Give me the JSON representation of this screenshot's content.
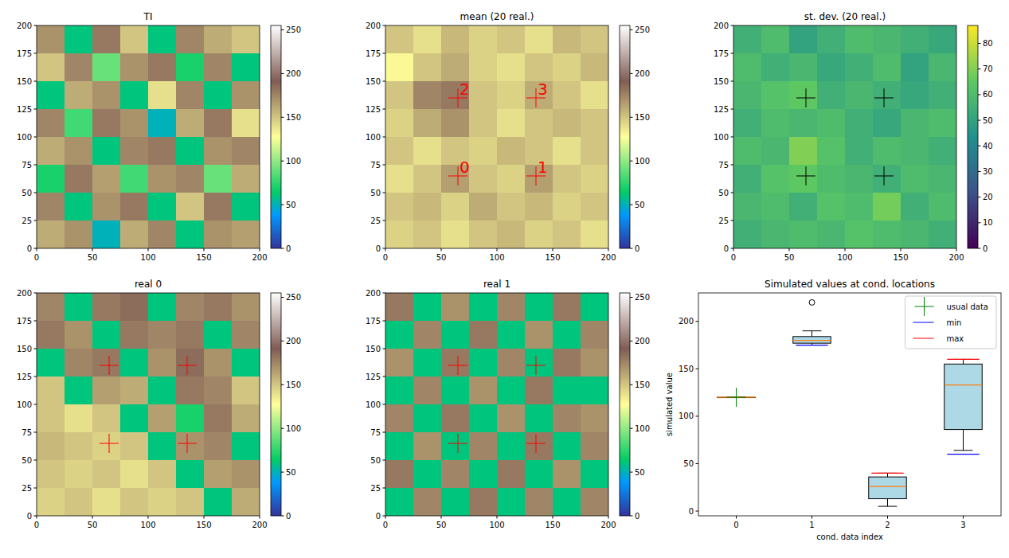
{
  "chart_data": [
    {
      "type": "heatmap",
      "title": "TI",
      "color": "terrain",
      "xlim": [
        0,
        200
      ],
      "ylim": [
        0,
        200
      ],
      "xticks": [
        0,
        50,
        100,
        150,
        200
      ],
      "yticks": [
        0,
        25,
        50,
        75,
        100,
        125,
        150,
        175,
        200
      ],
      "cells": [
        [
          170,
          60,
          180,
          150,
          60,
          175,
          160,
          150
        ],
        [
          150,
          175,
          90,
          170,
          180,
          70,
          175,
          60
        ],
        [
          60,
          160,
          170,
          60,
          140,
          175,
          60,
          170
        ],
        [
          175,
          80,
          180,
          170,
          50,
          160,
          180,
          140
        ],
        [
          160,
          170,
          60,
          175,
          180,
          60,
          170,
          175
        ],
        [
          70,
          180,
          165,
          80,
          170,
          175,
          90,
          160
        ],
        [
          175,
          60,
          170,
          180,
          60,
          150,
          180,
          60
        ],
        [
          160,
          170,
          50,
          160,
          175,
          60,
          170,
          165
        ]
      ],
      "clim": [
        0,
        255
      ],
      "cticks": [
        0,
        50,
        100,
        150,
        200,
        250
      ]
    },
    {
      "type": "heatmap",
      "title": "mean (20 real.)",
      "color": "terrain",
      "xlim": [
        0,
        200
      ],
      "ylim": [
        0,
        200
      ],
      "xticks": [
        0,
        50,
        100,
        150,
        200
      ],
      "yticks": [
        0,
        25,
        50,
        75,
        100,
        125,
        150,
        175,
        200
      ],
      "cells": [
        [
          150,
          140,
          155,
          145,
          150,
          140,
          155,
          150
        ],
        [
          130,
          150,
          160,
          145,
          140,
          150,
          145,
          155
        ],
        [
          150,
          175,
          180,
          150,
          145,
          160,
          150,
          140
        ],
        [
          145,
          160,
          170,
          150,
          140,
          150,
          155,
          150
        ],
        [
          150,
          140,
          150,
          145,
          155,
          150,
          140,
          150
        ],
        [
          140,
          150,
          165,
          150,
          145,
          165,
          150,
          145
        ],
        [
          150,
          155,
          145,
          160,
          150,
          155,
          145,
          150
        ],
        [
          145,
          150,
          140,
          150,
          155,
          145,
          150,
          140
        ]
      ],
      "clim": [
        0,
        255
      ],
      "cticks": [
        0,
        50,
        100,
        150,
        200,
        250
      ],
      "points": {
        "x": [
          65,
          135,
          65,
          135
        ],
        "y": [
          65,
          65,
          135,
          135
        ],
        "color": "red",
        "labels": [
          "0",
          "1",
          "2",
          "3"
        ]
      }
    },
    {
      "type": "heatmap",
      "title": "st. dev. (20 real.)",
      "color": "viridis",
      "xlim": [
        0,
        200
      ],
      "ylim": [
        0,
        200
      ],
      "xticks": [
        0,
        50,
        100,
        150,
        200
      ],
      "yticks": [
        0,
        25,
        50,
        75,
        100,
        125,
        150,
        175,
        200
      ],
      "cells": [
        [
          55,
          60,
          50,
          55,
          60,
          58,
          55,
          52
        ],
        [
          60,
          55,
          58,
          52,
          55,
          60,
          50,
          58
        ],
        [
          58,
          62,
          65,
          55,
          58,
          55,
          52,
          55
        ],
        [
          55,
          60,
          58,
          60,
          55,
          52,
          58,
          60
        ],
        [
          60,
          58,
          70,
          62,
          55,
          60,
          58,
          55
        ],
        [
          55,
          62,
          65,
          60,
          58,
          55,
          60,
          58
        ],
        [
          58,
          60,
          55,
          62,
          60,
          68,
          55,
          60
        ],
        [
          55,
          58,
          60,
          58,
          62,
          60,
          58,
          55
        ]
      ],
      "clim": [
        0,
        87
      ],
      "cticks": [
        0,
        10,
        20,
        30,
        40,
        50,
        60,
        70,
        80
      ],
      "points": {
        "x": [
          65,
          135,
          65,
          135
        ],
        "y": [
          65,
          65,
          135,
          135
        ],
        "color": "black"
      }
    },
    {
      "type": "heatmap",
      "title": "real 0",
      "color": "terrain",
      "xlim": [
        0,
        200
      ],
      "ylim": [
        0,
        200
      ],
      "xticks": [
        0,
        50,
        100,
        150,
        200
      ],
      "yticks": [
        0,
        25,
        50,
        75,
        100,
        125,
        150,
        175,
        200
      ],
      "cells": [
        [
          175,
          60,
          180,
          185,
          60,
          175,
          180,
          170
        ],
        [
          180,
          170,
          60,
          180,
          175,
          180,
          60,
          175
        ],
        [
          60,
          175,
          180,
          60,
          170,
          185,
          170,
          60
        ],
        [
          150,
          60,
          165,
          160,
          60,
          180,
          175,
          150
        ],
        [
          150,
          140,
          150,
          60,
          165,
          70,
          180,
          160
        ],
        [
          155,
          150,
          145,
          150,
          60,
          170,
          175,
          60
        ],
        [
          150,
          145,
          150,
          140,
          150,
          60,
          165,
          170
        ],
        [
          145,
          150,
          140,
          150,
          145,
          150,
          60,
          160
        ]
      ],
      "clim": [
        0,
        255
      ],
      "cticks": [
        0,
        50,
        100,
        150,
        200,
        250
      ],
      "points": {
        "x": [
          65,
          135,
          65,
          135
        ],
        "y": [
          65,
          65,
          135,
          135
        ],
        "color": "red"
      }
    },
    {
      "type": "heatmap",
      "title": "real 1",
      "color": "terrain",
      "xlim": [
        0,
        200
      ],
      "ylim": [
        0,
        200
      ],
      "xticks": [
        0,
        50,
        100,
        150,
        200
      ],
      "yticks": [
        0,
        25,
        50,
        75,
        100,
        125,
        150,
        175,
        200
      ],
      "cells": [
        [
          180,
          60,
          170,
          60,
          175,
          60,
          180,
          60
        ],
        [
          60,
          175,
          60,
          180,
          60,
          170,
          60,
          175
        ],
        [
          170,
          60,
          180,
          60,
          175,
          60,
          180,
          170
        ],
        [
          60,
          175,
          60,
          170,
          60,
          180,
          60,
          60
        ],
        [
          175,
          60,
          180,
          60,
          170,
          60,
          175,
          170
        ],
        [
          60,
          170,
          60,
          175,
          60,
          180,
          60,
          175
        ],
        [
          180,
          60,
          175,
          60,
          180,
          60,
          170,
          60
        ],
        [
          60,
          175,
          60,
          180,
          60,
          175,
          60,
          175
        ]
      ],
      "clim": [
        0,
        255
      ],
      "cticks": [
        0,
        50,
        100,
        150,
        200,
        250
      ],
      "points": {
        "x": [
          65,
          135,
          65,
          135
        ],
        "y": [
          65,
          65,
          135,
          135
        ],
        "color": "red"
      }
    },
    {
      "type": "box",
      "title": "Simulated values at cond. locations",
      "x_label": "cond. data index",
      "y_label": "simulated value",
      "categories": [
        "0",
        "1",
        "2",
        "3"
      ],
      "xlim": [
        -0.5,
        3.5
      ],
      "ylim": [
        -5,
        230
      ],
      "yticks": [
        0,
        50,
        100,
        150,
        200
      ],
      "color": "lightblue",
      "legend": "upper right",
      "boxes": [
        {
          "whislo": 120,
          "q1": 120,
          "med": 120,
          "q3": 120,
          "whishi": 120,
          "fliers": []
        },
        {
          "whislo": 175,
          "q1": 177,
          "med": 180,
          "q3": 184,
          "whishi": 190,
          "fliers": [
            220
          ]
        },
        {
          "whislo": 5,
          "q1": 13,
          "med": 26,
          "q3": 36,
          "whishi": 40,
          "fliers": []
        },
        {
          "whislo": 64,
          "q1": 86,
          "med": 133,
          "q3": 155,
          "whishi": 160,
          "fliers": []
        }
      ],
      "series": [
        {
          "name": "usual data",
          "color": "green",
          "marker": "plus",
          "x": [
            0
          ],
          "values": [
            120
          ]
        },
        {
          "name": "min",
          "color": "blue",
          "marker": "hline",
          "x": [
            1,
            3
          ],
          "values": [
            175,
            60
          ]
        },
        {
          "name": "max",
          "color": "red",
          "marker": "hline",
          "x": [
            2,
            3
          ],
          "values": [
            40,
            160
          ]
        }
      ]
    }
  ]
}
